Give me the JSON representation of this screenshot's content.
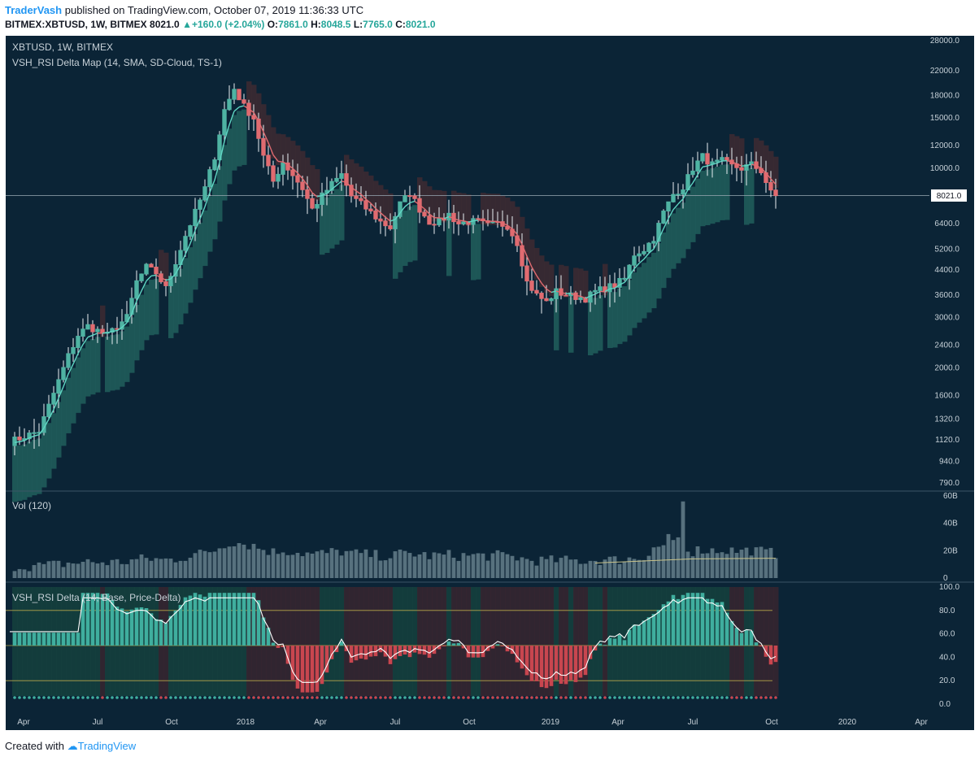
{
  "header": {
    "author": "TraderVash",
    "published": "published on TradingView.com, October 07, 2019 11:36:33 UTC",
    "symbol_line": "BITMEX:XBTUSD, 1W, BITMEX",
    "last": "8021.0",
    "change": "+160.0 (+2.04%)",
    "o_label": "O:",
    "o": "7861.0",
    "h_label": "H:",
    "h": "8048.5",
    "l_label": "L:",
    "l": "7765.0",
    "c_label": "C:",
    "c": "8021.0"
  },
  "footer": {
    "created_with": "Created with",
    "brand": "TradingView"
  },
  "colors": {
    "bg": "#0b2436",
    "bull": "#4fb3a3",
    "bear": "#e06b70",
    "cloud_up": "#1f5c5a",
    "cloud_down": "#3b2a32",
    "ema_up": "#5fd6c3",
    "ema_down": "#e06b70"
  },
  "chart_data": [
    {
      "type": "candlestick",
      "title": "XBTUSD, 1W, BITMEX",
      "indicator": "VSH_RSI Delta Map (14, SMA, SD-Cloud, TS-1)",
      "y_scale": "log",
      "y_ticks": [
        "28000.0",
        "22000.0",
        "18000.0",
        "15000.0",
        "12000.0",
        "10000.0",
        "8021.0",
        "6400.0",
        "5200.0",
        "4400.0",
        "3600.0",
        "3000.0",
        "2400.0",
        "2000.0",
        "1600.0",
        "1320.0",
        "1120.0",
        "940.0",
        "790.0"
      ],
      "last_price_label": "8021.0",
      "x_labels": [
        "Apr",
        "Jul",
        "Oct",
        "2018",
        "Apr",
        "Jul",
        "Oct",
        "2019",
        "Apr",
        "Jul",
        "Oct",
        "2020",
        "Apr"
      ],
      "anchors": [
        [
          0,
          1100
        ],
        [
          6,
          1200
        ],
        [
          12,
          2200
        ],
        [
          14,
          2600
        ],
        [
          16,
          2800
        ],
        [
          20,
          2600
        ],
        [
          24,
          3000
        ],
        [
          26,
          4000
        ],
        [
          28,
          4500
        ],
        [
          30,
          4300
        ],
        [
          32,
          3800
        ],
        [
          36,
          5800
        ],
        [
          38,
          7000
        ],
        [
          40,
          8500
        ],
        [
          42,
          11000
        ],
        [
          44,
          16000
        ],
        [
          46,
          19000
        ],
        [
          48,
          16500
        ],
        [
          50,
          15000
        ],
        [
          52,
          11000
        ],
        [
          54,
          9000
        ],
        [
          56,
          10500
        ],
        [
          58,
          9500
        ],
        [
          60,
          8500
        ],
        [
          62,
          7200
        ],
        [
          64,
          8000
        ],
        [
          66,
          8800
        ],
        [
          68,
          9500
        ],
        [
          70,
          8000
        ],
        [
          72,
          7500
        ],
        [
          74,
          7000
        ],
        [
          76,
          6500
        ],
        [
          78,
          6200
        ],
        [
          80,
          7500
        ],
        [
          82,
          8200
        ],
        [
          84,
          7200
        ],
        [
          86,
          6500
        ],
        [
          88,
          6500
        ],
        [
          90,
          6900
        ],
        [
          92,
          6400
        ],
        [
          94,
          6500
        ],
        [
          96,
          6500
        ],
        [
          98,
          6300
        ],
        [
          100,
          6400
        ],
        [
          102,
          6300
        ],
        [
          104,
          5500
        ],
        [
          106,
          4000
        ],
        [
          108,
          3600
        ],
        [
          110,
          3400
        ],
        [
          112,
          3700
        ],
        [
          114,
          3600
        ],
        [
          116,
          3550
        ],
        [
          118,
          3500
        ],
        [
          120,
          3700
        ],
        [
          122,
          3800
        ],
        [
          124,
          3900
        ],
        [
          126,
          4100
        ],
        [
          128,
          5000
        ],
        [
          130,
          5200
        ],
        [
          132,
          5700
        ],
        [
          134,
          7000
        ],
        [
          136,
          8100
        ],
        [
          138,
          8600
        ],
        [
          140,
          10000
        ],
        [
          142,
          11000
        ],
        [
          144,
          10300
        ],
        [
          146,
          10600
        ],
        [
          148,
          10200
        ],
        [
          150,
          10000
        ],
        [
          152,
          10300
        ],
        [
          154,
          9800
        ],
        [
          156,
          8200
        ],
        [
          157,
          8021
        ]
      ]
    },
    {
      "type": "bar",
      "title": "Vol (120)",
      "y_ticks": [
        "60B",
        "40B",
        "20B",
        "0"
      ]
    },
    {
      "type": "line",
      "title": "VSH_RSI Delta (14, Base, Price-Delta)",
      "y_ticks": [
        "100.0",
        "80.0",
        "60.0",
        "40.0",
        "20.0",
        "0.0"
      ],
      "levels": [
        80,
        50,
        20
      ]
    }
  ]
}
